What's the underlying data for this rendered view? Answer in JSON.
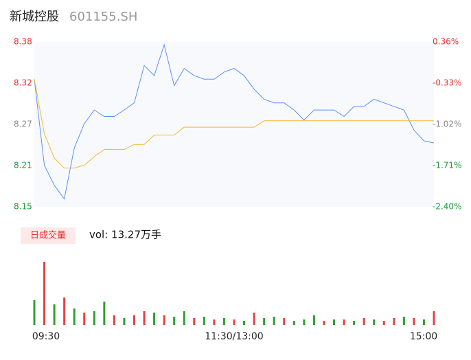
{
  "header": {
    "name": "新城控股",
    "code": "601155.SH"
  },
  "chart_data": {
    "type": "line",
    "x": [
      0,
      6,
      12,
      18,
      24,
      30,
      36,
      42,
      48,
      54,
      60,
      66,
      72,
      78,
      84,
      90,
      96,
      102,
      108,
      114,
      120,
      126,
      132,
      138,
      144,
      150,
      156,
      162,
      168,
      174,
      180,
      186,
      192,
      198,
      204,
      210,
      216,
      222,
      228,
      234,
      240
    ],
    "xlim": [
      0,
      240
    ],
    "xticks": [
      {
        "value": 0,
        "label": "09:30"
      },
      {
        "value": 120,
        "label": "11:30/13:00"
      },
      {
        "value": 240,
        "label": "15:00"
      }
    ],
    "ylim": [
      8.15,
      8.38
    ],
    "yticks": [
      {
        "value": 8.15,
        "label": "8.15"
      },
      {
        "value": 8.2075,
        "label": "8.21"
      },
      {
        "value": 8.265,
        "label": "8.27"
      },
      {
        "value": 8.3225,
        "label": "8.32"
      },
      {
        "value": 8.38,
        "label": "8.38"
      }
    ],
    "ytick_colors": [
      "#1a9e3a",
      "#1a9e3a",
      "#888888",
      "#e83030",
      "#e83030"
    ],
    "y2lim": [
      -2.4,
      0.36
    ],
    "y2ticks": [
      {
        "value": -2.4,
        "label": "-2.40%"
      },
      {
        "value": -1.71,
        "label": "-1.71%"
      },
      {
        "value": -1.02,
        "label": "-1.02%"
      },
      {
        "value": -0.33,
        "label": "-0.33%"
      },
      {
        "value": 0.36,
        "label": "0.36%"
      }
    ],
    "series": [
      {
        "color": "#5b8ff9",
        "values": [
          8.328,
          8.208,
          8.18,
          8.161,
          8.232,
          8.266,
          8.285,
          8.276,
          8.276,
          8.285,
          8.295,
          8.347,
          8.333,
          8.376,
          8.319,
          8.343,
          8.333,
          8.328,
          8.328,
          8.338,
          8.343,
          8.333,
          8.314,
          8.3,
          8.295,
          8.295,
          8.285,
          8.271,
          8.285,
          8.285,
          8.285,
          8.276,
          8.29,
          8.29,
          8.3,
          8.295,
          8.29,
          8.285,
          8.257,
          8.242,
          8.239
        ]
      },
      {
        "color": "#f5b82e",
        "values": [
          8.328,
          8.252,
          8.218,
          8.204,
          8.204,
          8.208,
          8.22,
          8.23,
          8.23,
          8.23,
          8.237,
          8.237,
          8.25,
          8.25,
          8.25,
          8.261,
          8.261,
          8.261,
          8.261,
          8.261,
          8.261,
          8.261,
          8.261,
          8.27,
          8.27,
          8.27,
          8.27,
          8.27,
          8.27,
          8.27,
          8.27,
          8.27,
          8.27,
          8.27,
          8.27,
          8.27,
          8.27,
          8.27,
          8.27,
          8.27,
          8.27
        ]
      }
    ],
    "volume": {
      "legend": "日成交量",
      "label": "vol: 13.27万手",
      "vlim": [
        0,
        5000
      ],
      "values": [
        1800,
        4600,
        1500,
        2000,
        1200,
        900,
        1000,
        1700,
        700,
        500,
        700,
        1000,
        900,
        700,
        600,
        1000,
        500,
        600,
        400,
        500,
        400,
        300,
        900,
        500,
        600,
        500,
        300,
        400,
        700,
        300,
        400,
        400,
        300,
        500,
        400,
        300,
        500,
        600,
        500,
        400,
        1000
      ],
      "colors": [
        "#2ca02c",
        "#e84040",
        "#2ca02c",
        "#e84040",
        "#2ca02c",
        "#e84040",
        "#2ca02c",
        "#2ca02c",
        "#e84040",
        "#2ca02c",
        "#e84040",
        "#e84040",
        "#2ca02c",
        "#e84040",
        "#2ca02c",
        "#2ca02c",
        "#e84040",
        "#2ca02c",
        "#e84040",
        "#2ca02c",
        "#e84040",
        "#2ca02c",
        "#e84040",
        "#2ca02c",
        "#2ca02c",
        "#e84040",
        "#2ca02c",
        "#2ca02c",
        "#2ca02c",
        "#e84040",
        "#2ca02c",
        "#e84040",
        "#2ca02c",
        "#e84040",
        "#2ca02c",
        "#e84040",
        "#e84040",
        "#2ca02c",
        "#e84040",
        "#2ca02c",
        "#e84040"
      ]
    }
  }
}
